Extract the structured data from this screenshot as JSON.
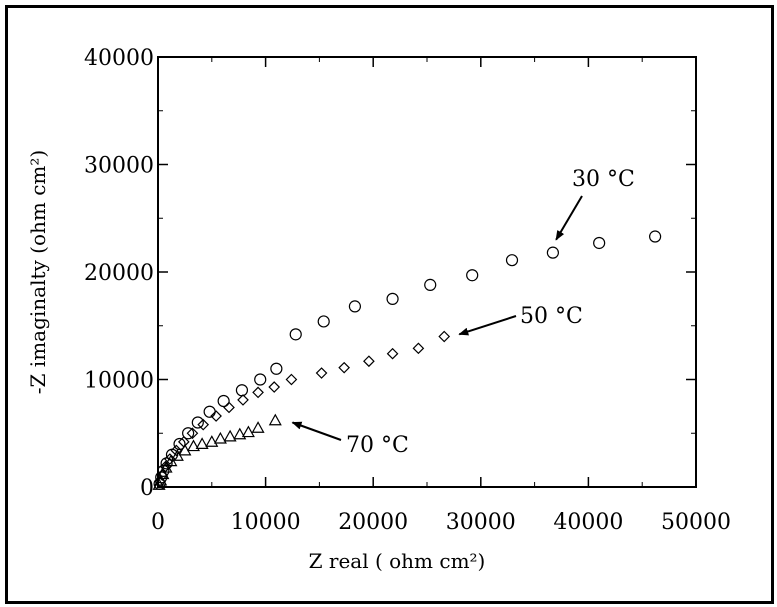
{
  "chart_data": {
    "type": "scatter",
    "xlabel": "Z real ( ohm cm²)",
    "ylabel": "-Z imaginalty (ohm cm²)",
    "xlim": [
      0,
      50000
    ],
    "ylim": [
      0,
      40000
    ],
    "x_ticks": [
      "0",
      "10000",
      "20000",
      "30000",
      "40000",
      "50000"
    ],
    "y_ticks": [
      "0",
      "10000",
      "20000",
      "30000",
      "40000"
    ],
    "grid": false,
    "legend": "none",
    "series": [
      {
        "marker": "circle",
        "points": [
          [
            150,
            300
          ],
          [
            300,
            900
          ],
          [
            500,
            1500
          ],
          [
            800,
            2200
          ],
          [
            1300,
            3000
          ],
          [
            2000,
            4000
          ],
          [
            2800,
            5000
          ],
          [
            3700,
            6000
          ],
          [
            4800,
            7000
          ],
          [
            6100,
            8000
          ],
          [
            7800,
            9000
          ],
          [
            9500,
            10000
          ],
          [
            11000,
            11000
          ],
          [
            12800,
            14200
          ],
          [
            15400,
            15400
          ],
          [
            18300,
            16800
          ],
          [
            21800,
            17500
          ],
          [
            25300,
            18800
          ],
          [
            29200,
            19700
          ],
          [
            32900,
            21100
          ],
          [
            36700,
            21800
          ],
          [
            41000,
            22700
          ],
          [
            46200,
            23300
          ]
        ]
      },
      {
        "marker": "diamond",
        "points": [
          [
            200,
            500
          ],
          [
            400,
            1100
          ],
          [
            700,
            1900
          ],
          [
            1100,
            2600
          ],
          [
            1700,
            3400
          ],
          [
            2400,
            4200
          ],
          [
            3200,
            5000
          ],
          [
            4200,
            5800
          ],
          [
            5400,
            6600
          ],
          [
            6600,
            7400
          ],
          [
            7900,
            8100
          ],
          [
            9300,
            8800
          ],
          [
            10800,
            9300
          ],
          [
            12400,
            10000
          ],
          [
            15200,
            10600
          ],
          [
            17300,
            11100
          ],
          [
            19600,
            11700
          ],
          [
            21800,
            12400
          ],
          [
            24200,
            12900
          ],
          [
            26600,
            14000
          ]
        ]
      },
      {
        "marker": "triangle",
        "points": [
          [
            100,
            200
          ],
          [
            250,
            600
          ],
          [
            450,
            1200
          ],
          [
            750,
            1800
          ],
          [
            1200,
            2400
          ],
          [
            1800,
            2900
          ],
          [
            2500,
            3400
          ],
          [
            3300,
            3800
          ],
          [
            4100,
            4000
          ],
          [
            5000,
            4200
          ],
          [
            5800,
            4500
          ],
          [
            6700,
            4700
          ],
          [
            7600,
            4900
          ],
          [
            8400,
            5100
          ],
          [
            9300,
            5500
          ],
          [
            10900,
            6200
          ]
        ]
      }
    ],
    "annotations": [
      {
        "text": "30 °C",
        "arrow_to": [
          37000,
          23000
        ]
      },
      {
        "text": "50 °C",
        "arrow_to": [
          28000,
          14200
        ]
      },
      {
        "text": "70 °C",
        "arrow_to": [
          12500,
          6000
        ]
      }
    ]
  }
}
